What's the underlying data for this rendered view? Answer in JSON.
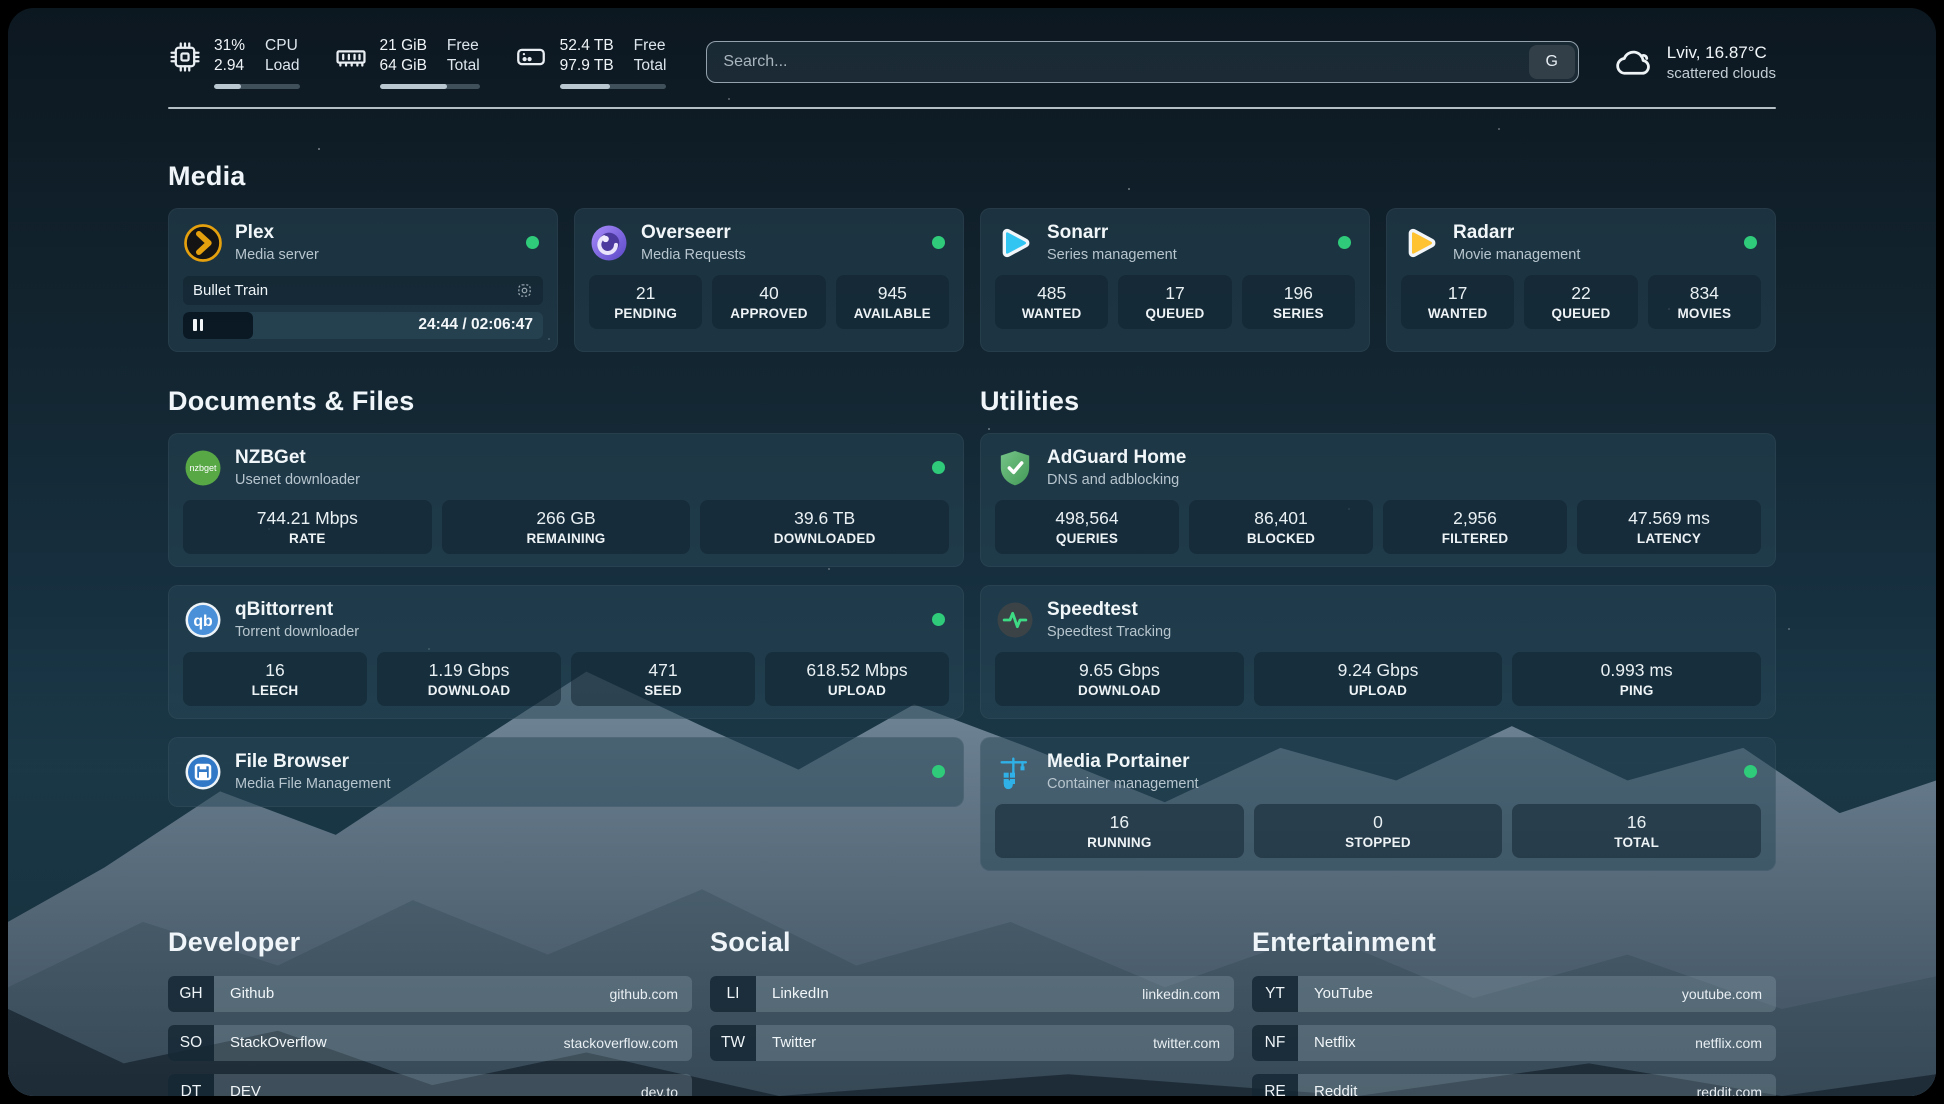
{
  "colors": {
    "status_online": "#2fcb7a",
    "accent_plex": "#e5a00d",
    "accent_sonarr": "#33c5f1",
    "accent_radarr": "#ffc230"
  },
  "header": {
    "metrics": [
      {
        "icon": "cpu-icon",
        "value_top": "31%",
        "value_bottom": "2.94",
        "label_top": "CPU",
        "label_bottom": "Load",
        "progress_pct": 31
      },
      {
        "icon": "memory-icon",
        "value_top": "21 GiB",
        "value_bottom": "64 GiB",
        "label_top": "Free",
        "label_bottom": "Total",
        "progress_pct": 67
      },
      {
        "icon": "disk-icon",
        "value_top": "52.4 TB",
        "value_bottom": "97.9 TB",
        "label_top": "Free",
        "label_bottom": "Total",
        "progress_pct": 47
      }
    ],
    "search": {
      "placeholder": "Search...",
      "button_label": "G"
    },
    "weather": {
      "icon": "cloud-icon",
      "location_temp": "Lviv, 16.87°C",
      "condition": "scattered clouds"
    }
  },
  "media": {
    "title": "Media",
    "plex": {
      "name": "Plex",
      "desc": "Media server",
      "icon": "plex-icon",
      "status": "online",
      "now_playing": {
        "title": "Bullet Train",
        "time": "24:44 / 02:06:47",
        "progress_pct": 19.5
      }
    },
    "overseerr": {
      "name": "Overseerr",
      "desc": "Media Requests",
      "icon": "overseerr-icon",
      "status": "online",
      "stats": [
        {
          "value": "21",
          "label": "PENDING"
        },
        {
          "value": "40",
          "label": "APPROVED"
        },
        {
          "value": "945",
          "label": "AVAILABLE"
        }
      ]
    },
    "sonarr": {
      "name": "Sonarr",
      "desc": "Series management",
      "icon": "sonarr-icon",
      "status": "online",
      "stats": [
        {
          "value": "485",
          "label": "WANTED"
        },
        {
          "value": "17",
          "label": "QUEUED"
        },
        {
          "value": "196",
          "label": "SERIES"
        }
      ]
    },
    "radarr": {
      "name": "Radarr",
      "desc": "Movie management",
      "icon": "radarr-icon",
      "status": "online",
      "stats": [
        {
          "value": "17",
          "label": "WANTED"
        },
        {
          "value": "22",
          "label": "QUEUED"
        },
        {
          "value": "834",
          "label": "MOVIES"
        }
      ]
    }
  },
  "documents": {
    "title": "Documents & Files",
    "nzbget": {
      "name": "NZBGet",
      "desc": "Usenet downloader",
      "icon": "nzbget-icon",
      "status": "online",
      "stats": [
        {
          "value": "744.21 Mbps",
          "label": "RATE"
        },
        {
          "value": "266 GB",
          "label": "REMAINING"
        },
        {
          "value": "39.6 TB",
          "label": "DOWNLOADED"
        }
      ]
    },
    "qbittorrent": {
      "name": "qBittorrent",
      "desc": "Torrent downloader",
      "icon": "qbittorrent-icon",
      "status": "online",
      "stats": [
        {
          "value": "16",
          "label": "LEECH"
        },
        {
          "value": "1.19 Gbps",
          "label": "DOWNLOAD"
        },
        {
          "value": "471",
          "label": "SEED"
        },
        {
          "value": "618.52 Mbps",
          "label": "UPLOAD"
        }
      ]
    },
    "filebrowser": {
      "name": "File Browser",
      "desc": "Media File Management",
      "icon": "filebrowser-icon",
      "status": "online"
    }
  },
  "utilities": {
    "title": "Utilities",
    "adguard": {
      "name": "AdGuard Home",
      "desc": "DNS and adblocking",
      "icon": "adguard-icon",
      "stats": [
        {
          "value": "498,564",
          "label": "QUERIES"
        },
        {
          "value": "86,401",
          "label": "BLOCKED"
        },
        {
          "value": "2,956",
          "label": "FILTERED"
        },
        {
          "value": "47.569 ms",
          "label": "LATENCY"
        }
      ]
    },
    "speedtest": {
      "name": "Speedtest",
      "desc": "Speedtest Tracking",
      "icon": "speedtest-icon",
      "stats": [
        {
          "value": "9.65 Gbps",
          "label": "DOWNLOAD"
        },
        {
          "value": "9.24 Gbps",
          "label": "UPLOAD"
        },
        {
          "value": "0.993 ms",
          "label": "PING"
        }
      ]
    },
    "portainer": {
      "name": "Media Portainer",
      "desc": "Container management",
      "icon": "portainer-icon",
      "status": "online",
      "stats": [
        {
          "value": "16",
          "label": "RUNNING"
        },
        {
          "value": "0",
          "label": "STOPPED"
        },
        {
          "value": "16",
          "label": "TOTAL"
        }
      ]
    }
  },
  "bookmarks": {
    "developer": {
      "title": "Developer",
      "items": [
        {
          "abbr": "GH",
          "name": "Github",
          "url": "github.com"
        },
        {
          "abbr": "SO",
          "name": "StackOverflow",
          "url": "stackoverflow.com"
        },
        {
          "abbr": "DT",
          "name": "DEV",
          "url": "dev.to"
        }
      ]
    },
    "social": {
      "title": "Social",
      "items": [
        {
          "abbr": "LI",
          "name": "LinkedIn",
          "url": "linkedin.com"
        },
        {
          "abbr": "TW",
          "name": "Twitter",
          "url": "twitter.com"
        }
      ]
    },
    "entertainment": {
      "title": "Entertainment",
      "items": [
        {
          "abbr": "YT",
          "name": "YouTube",
          "url": "youtube.com"
        },
        {
          "abbr": "NF",
          "name": "Netflix",
          "url": "netflix.com"
        },
        {
          "abbr": "RE",
          "name": "Reddit",
          "url": "reddit.com"
        }
      ]
    }
  }
}
